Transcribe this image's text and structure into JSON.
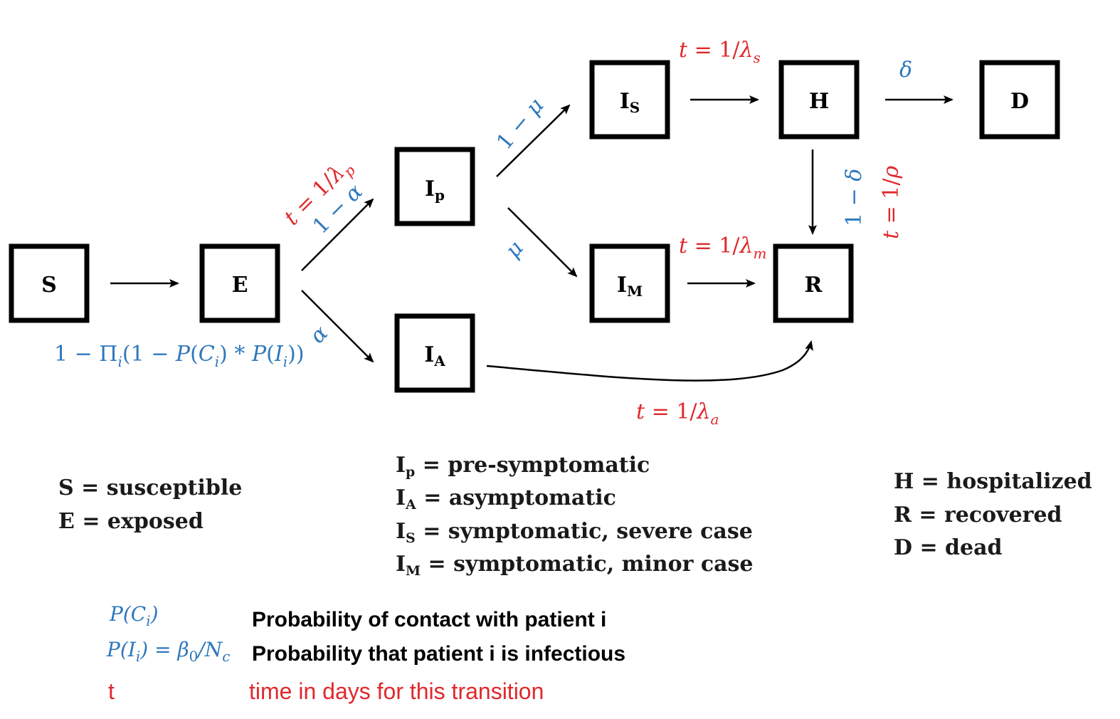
{
  "nodes": {
    "S": {
      "main": "S",
      "sub": ""
    },
    "E": {
      "main": "E",
      "sub": ""
    },
    "Ip": {
      "main": "I",
      "sub": "p"
    },
    "IA": {
      "main": "I",
      "sub": "A"
    },
    "IS": {
      "main": "I",
      "sub": "S"
    },
    "IM": {
      "main": "I",
      "sub": "M"
    },
    "H": {
      "main": "H",
      "sub": ""
    },
    "R": {
      "main": "R",
      "sub": ""
    },
    "D": {
      "main": "D",
      "sub": ""
    }
  },
  "edge_labels": {
    "s_to_e": {
      "a": "1 − Π",
      "a_sub": "i",
      "b": "(1 − ",
      "c": "P",
      "d": "(",
      "e": "C",
      "e_sub": "i",
      "f": ") * ",
      "g": "P",
      "h": "(",
      "i": "I",
      "i_sub": "i",
      "j": "))"
    },
    "e_to_ip_time": {
      "lhs": "t",
      "eq": " = 1/",
      "sym": "λ",
      "sub": "p"
    },
    "e_to_ip_prob": {
      "text": "1 − ",
      "sym": "α"
    },
    "e_to_ia_prob": {
      "sym": "α"
    },
    "ip_to_is_prob": {
      "text": "1 − ",
      "sym": "μ"
    },
    "ip_to_im_prob": {
      "sym": "μ"
    },
    "is_to_h_time": {
      "lhs": "t",
      "eq": " = 1/",
      "sym": "λ",
      "sub": "s"
    },
    "h_to_d_prob": {
      "sym": "δ"
    },
    "h_to_r_prob": {
      "text": "1 − ",
      "sym": "δ"
    },
    "h_to_r_time": {
      "lhs": "t",
      "eq": " = 1/",
      "sym": "ρ"
    },
    "im_to_r_time": {
      "lhs": "t",
      "eq": " = 1/",
      "sym": "λ",
      "sub": "m"
    },
    "ia_to_r_time": {
      "lhs": "t",
      "eq": " = 1/",
      "sym": "λ",
      "sub": "a"
    }
  },
  "legend": {
    "col1": [
      {
        "main": "S",
        "sub": "",
        "text": " = susceptible"
      },
      {
        "main": "E",
        "sub": "",
        "text": " = exposed"
      }
    ],
    "col2": [
      {
        "main": "I",
        "sub": "p",
        "text": " = pre-symptomatic"
      },
      {
        "main": "I",
        "sub": "A",
        "text": " = asymptomatic"
      },
      {
        "main": "I",
        "sub": "S",
        "text": " = symptomatic, severe case"
      },
      {
        "main": "I",
        "sub": "M",
        "text": " = symptomatic, minor case"
      }
    ],
    "col3": [
      {
        "main": "H",
        "sub": "",
        "text": " = hospitalized"
      },
      {
        "main": "R",
        "sub": "",
        "text": " = recovered"
      },
      {
        "main": "D",
        "sub": "",
        "text": " = dead"
      }
    ]
  },
  "definitions": [
    {
      "term_a": "P",
      "term_b": "(",
      "term_c": "C",
      "term_c_sub": "i",
      "term_d": ")",
      "desc": "Probability of contact with patient i"
    },
    {
      "term_a": "P",
      "term_b": "(",
      "term_c": "I",
      "term_c_sub": "i",
      "term_d": ") = ",
      "term_e": "β",
      "term_e_sub": "0",
      "term_f": "/",
      "term_g": "N",
      "term_g_sub": "c",
      "desc": "Probability that patient i is infectious"
    },
    {
      "term": "t",
      "desc": "time in days for this transition"
    }
  ],
  "colors": {
    "time": "#e0282c",
    "probability": "#2e78bd",
    "box": "#000000"
  }
}
